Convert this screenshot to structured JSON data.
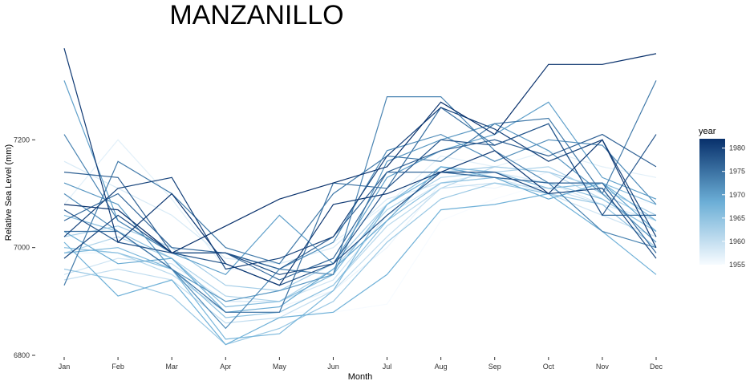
{
  "chart_data": {
    "type": "line",
    "title": "MANZANILLO",
    "xlabel": "Month",
    "ylabel": "Relative Sea Level (mm)",
    "categories": [
      "Jan",
      "Feb",
      "Mar",
      "Apr",
      "May",
      "Jun",
      "Jul",
      "Aug",
      "Sep",
      "Oct",
      "Nov",
      "Dec"
    ],
    "ylim": [
      6800,
      7400
    ],
    "yticks": [
      6800,
      7000,
      7200
    ],
    "grid": false,
    "legend": {
      "title": "year",
      "position": "right",
      "range": [
        1955,
        1982
      ],
      "ticks": [
        1955,
        1960,
        1965,
        1970,
        1975,
        1980
      ],
      "color_low": "#f7fbff",
      "color_high": "#08306b"
    },
    "series": [
      {
        "year": 1955,
        "values": [
          7030,
          7000,
          6975,
          6910,
          6880,
          6880,
          6895,
          7050,
          7090,
          7120,
          7100,
          7080
        ]
      },
      {
        "year": 1956,
        "values": [
          6990,
          6990,
          6960,
          6880,
          6890,
          6920,
          7000,
          7120,
          7110,
          7140,
          7110,
          7060
        ]
      },
      {
        "year": 1957,
        "values": [
          7080,
          7200,
          7090,
          6960,
          6960,
          7010,
          7080,
          7170,
          7150,
          7180,
          7150,
          7130
        ]
      },
      {
        "year": 1958,
        "values": [
          7160,
          7110,
          7060,
          6980,
          6970,
          7000,
          7090,
          7120,
          7140,
          7120,
          7080,
          7050
        ]
      },
      {
        "year": 1959,
        "values": [
          6950,
          6980,
          6970,
          6900,
          6900,
          6940,
          7060,
          7120,
          7130,
          7100,
          7060,
          7020
        ]
      },
      {
        "year": 1960,
        "values": [
          6940,
          6960,
          6940,
          6860,
          6870,
          6920,
          7020,
          7110,
          7120,
          7110,
          7080,
          7000
        ]
      },
      {
        "year": 1961,
        "values": [
          7000,
          6990,
          6950,
          6880,
          6880,
          6930,
          7040,
          7110,
          7150,
          7140,
          7090,
          7030
        ]
      },
      {
        "year": 1962,
        "values": [
          6990,
          7020,
          6980,
          6910,
          6900,
          6960,
          7070,
          7130,
          7140,
          7150,
          7100,
          7050
        ]
      },
      {
        "year": 1963,
        "values": [
          7020,
          7040,
          7000,
          6930,
          6920,
          6970,
          7080,
          7140,
          7150,
          7140,
          7110,
          7060
        ]
      },
      {
        "year": 1964,
        "values": [
          6960,
          6940,
          6910,
          6820,
          6850,
          6900,
          7010,
          7090,
          7120,
          7100,
          7080,
          7000
        ]
      },
      {
        "year": 1965,
        "values": [
          7000,
          6990,
          6960,
          6870,
          6880,
          6930,
          7050,
          7120,
          7130,
          7120,
          7090,
          7030
        ]
      },
      {
        "year": 1966,
        "values": [
          7060,
          7030,
          6980,
          6890,
          6900,
          6950,
          7080,
          7150,
          7140,
          7110,
          7120,
          7080
        ]
      },
      {
        "year": 1967,
        "values": [
          6990,
          7000,
          6960,
          6830,
          6840,
          6920,
          7080,
          7140,
          7130,
          7120,
          7120,
          7050
        ]
      },
      {
        "year": 1968,
        "values": [
          7010,
          6910,
          6940,
          6820,
          6870,
          6880,
          6950,
          7070,
          7080,
          7100,
          7030,
          6950
        ]
      },
      {
        "year": 1969,
        "values": [
          7030,
          6970,
          6980,
          6880,
          6890,
          6960,
          7050,
          7150,
          7130,
          7090,
          7120,
          7030
        ]
      },
      {
        "year": 1970,
        "values": [
          7310,
          7050,
          6990,
          6950,
          7060,
          6970,
          7130,
          7180,
          7210,
          7270,
          7130,
          7090
        ]
      },
      {
        "year": 1971,
        "values": [
          7120,
          7080,
          6960,
          6900,
          6920,
          6950,
          7160,
          7200,
          7230,
          7180,
          7100,
          7010
        ]
      },
      {
        "year": 1972,
        "values": [
          7100,
          7030,
          6960,
          6850,
          6960,
          7010,
          7180,
          7210,
          7160,
          7200,
          7190,
          7080
        ]
      },
      {
        "year": 1973,
        "values": [
          7210,
          7050,
          6990,
          6990,
          6960,
          6950,
          7280,
          7280,
          7180,
          7120,
          7030,
          7000
        ]
      },
      {
        "year": 1974,
        "values": [
          6930,
          7160,
          7100,
          7000,
          6970,
          7100,
          7170,
          7160,
          7230,
          7240,
          7100,
          7310
        ]
      },
      {
        "year": 1975,
        "values": [
          7030,
          7030,
          6960,
          6880,
          6880,
          7120,
          7110,
          7260,
          7190,
          7230,
          7060,
          7060
        ]
      },
      {
        "year": 1976,
        "values": [
          7050,
          7100,
          7000,
          6990,
          6940,
          6980,
          7140,
          7140,
          7130,
          7120,
          7120,
          6990
        ]
      },
      {
        "year": 1977,
        "values": [
          7140,
          7130,
          6990,
          6990,
          6960,
          7020,
          7140,
          7180,
          7200,
          7170,
          7210,
          7150
        ]
      },
      {
        "year": 1978,
        "values": [
          7070,
          7010,
          6990,
          6970,
          6930,
          6970,
          7110,
          7200,
          7190,
          7230,
          7060,
          7210
        ]
      },
      {
        "year": 1979,
        "values": [
          6980,
          7060,
          6990,
          6990,
          6950,
          6970,
          7060,
          7140,
          7140,
          7100,
          7110,
          6980
        ]
      },
      {
        "year": 1980,
        "values": [
          7020,
          7110,
          7130,
          6960,
          6980,
          7020,
          7170,
          7260,
          7220,
          7160,
          7200,
          7020
        ]
      },
      {
        "year": 1981,
        "values": [
          7370,
          7010,
          7100,
          6970,
          6930,
          7080,
          7100,
          7140,
          7180,
          7100,
          7200,
          7000
        ]
      },
      {
        "year": 1982,
        "values": [
          7080,
          7070,
          6990,
          7040,
          7090,
          7120,
          7150,
          7270,
          7210,
          7340,
          7340,
          7360
        ]
      }
    ]
  }
}
